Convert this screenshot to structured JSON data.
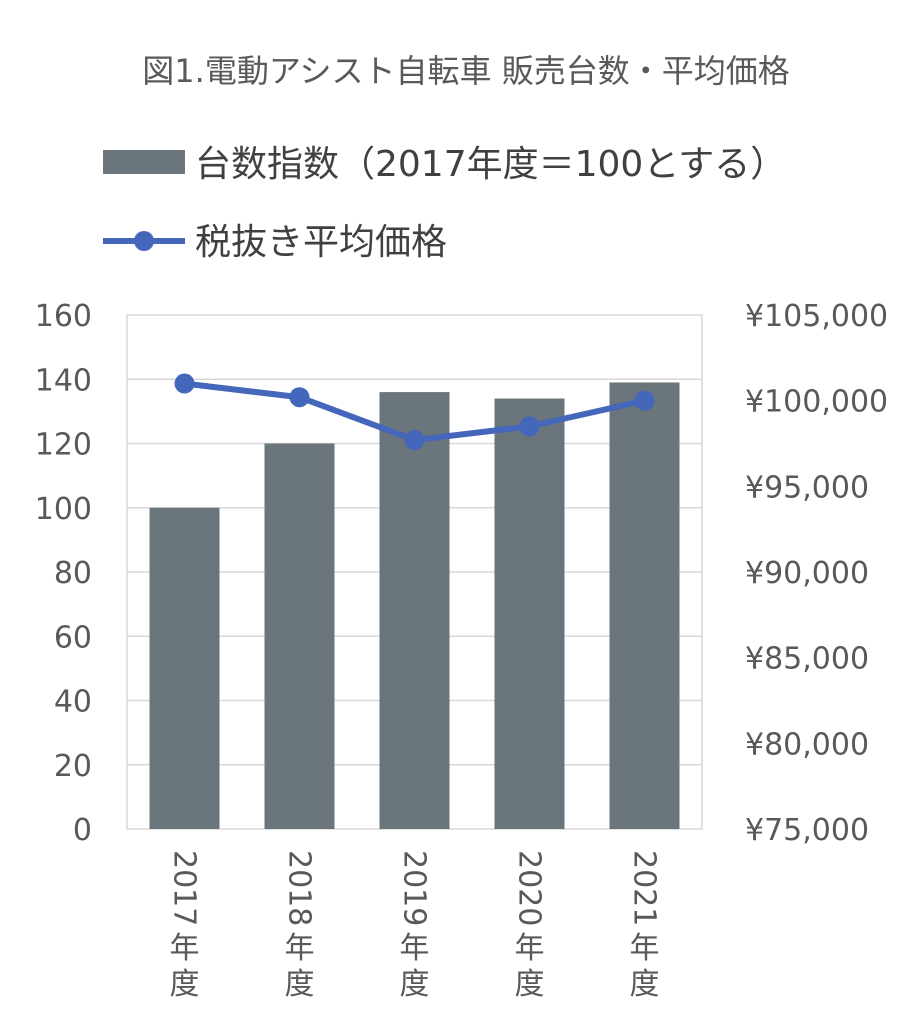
{
  "chart_data": {
    "type": "bar",
    "title": "図1.電動アシスト自転車 販売台数・平均価格",
    "categories": [
      "2017年度",
      "2018年度",
      "2019年度",
      "2020年度",
      "2021年度"
    ],
    "series": [
      {
        "name": "台数指数（2017年度＝100とする）",
        "type": "bar",
        "axis": "left",
        "color": "#6b757c",
        "values": [
          100,
          120,
          136,
          134,
          139
        ]
      },
      {
        "name": "税抜き平均価格",
        "type": "line",
        "axis": "right",
        "color": "#4466bb",
        "marker": "circle",
        "values": [
          101000,
          100200,
          97700,
          98500,
          100000
        ]
      }
    ],
    "y_left": {
      "ylim": [
        0,
        160
      ],
      "ticks": [
        "0",
        "20",
        "40",
        "60",
        "80",
        "100",
        "120",
        "140",
        "160"
      ]
    },
    "y_right": {
      "ylim": [
        75000,
        105000
      ],
      "ticks": [
        "¥75,000",
        "¥80,000",
        "¥85,000",
        "¥90,000",
        "¥95,000",
        "¥100,000",
        "¥105,000"
      ]
    },
    "grid": true,
    "legend": "top",
    "category_label_orientation": "vertical"
  }
}
